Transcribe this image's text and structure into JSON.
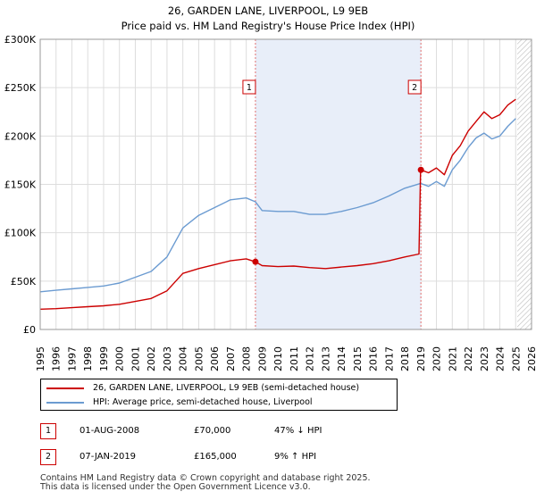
{
  "chart_data": {
    "type": "line",
    "title": "26, GARDEN LANE, LIVERPOOL, L9 9EB",
    "subtitle": "Price paid vs. HM Land Registry's House Price Index (HPI)",
    "xlabel": "",
    "ylabel": "",
    "xlim": [
      1995,
      2026
    ],
    "ylim": [
      0,
      300000
    ],
    "x_ticks": [
      "1995",
      "1996",
      "1997",
      "1998",
      "1999",
      "2000",
      "2001",
      "2002",
      "2003",
      "2004",
      "2005",
      "2006",
      "2007",
      "2008",
      "2009",
      "2010",
      "2011",
      "2012",
      "2013",
      "2014",
      "2015",
      "2016",
      "2017",
      "2018",
      "2019",
      "2020",
      "2021",
      "2022",
      "2023",
      "2024",
      "2025",
      "2026"
    ],
    "y_ticks": [
      {
        "value": 0,
        "label": "£0"
      },
      {
        "value": 50000,
        "label": "£50K"
      },
      {
        "value": 100000,
        "label": "£100K"
      },
      {
        "value": 150000,
        "label": "£150K"
      },
      {
        "value": 200000,
        "label": "£200K"
      },
      {
        "value": 250000,
        "label": "£250K"
      },
      {
        "value": 300000,
        "label": "£300K"
      }
    ],
    "shaded_range": [
      2008.58,
      2019.02
    ],
    "forecast_start": 2025.1,
    "series": [
      {
        "name": "26, GARDEN LANE, LIVERPOOL, L9 9EB (semi-detached house)",
        "color": "#cc0000",
        "points": [
          [
            1995,
            21000
          ],
          [
            1996,
            21500
          ],
          [
            1997,
            22500
          ],
          [
            1998,
            23500
          ],
          [
            1999,
            24500
          ],
          [
            2000,
            26000
          ],
          [
            2001,
            29000
          ],
          [
            2002,
            32000
          ],
          [
            2003,
            40000
          ],
          [
            2004,
            58000
          ],
          [
            2005,
            63000
          ],
          [
            2006,
            67000
          ],
          [
            2007,
            71000
          ],
          [
            2008,
            73000
          ],
          [
            2008.58,
            70000
          ],
          [
            2009,
            66000
          ],
          [
            2010,
            65000
          ],
          [
            2011,
            65500
          ],
          [
            2012,
            64000
          ],
          [
            2013,
            63000
          ],
          [
            2014,
            64500
          ],
          [
            2015,
            66000
          ],
          [
            2016,
            68000
          ],
          [
            2017,
            71000
          ],
          [
            2018,
            75000
          ],
          [
            2018.9,
            78000
          ],
          [
            2019.0,
            165000
          ],
          [
            2019.5,
            162000
          ],
          [
            2020,
            167000
          ],
          [
            2020.5,
            160000
          ],
          [
            2021,
            180000
          ],
          [
            2021.5,
            190000
          ],
          [
            2022,
            205000
          ],
          [
            2022.5,
            215000
          ],
          [
            2023,
            225000
          ],
          [
            2023.5,
            218000
          ],
          [
            2024,
            222000
          ],
          [
            2024.5,
            232000
          ],
          [
            2025,
            238000
          ]
        ]
      },
      {
        "name": "HPI: Average price, semi-detached house, Liverpool",
        "color": "#6b9bd1",
        "points": [
          [
            1995,
            39000
          ],
          [
            1996,
            40500
          ],
          [
            1997,
            42000
          ],
          [
            1998,
            43500
          ],
          [
            1999,
            45000
          ],
          [
            2000,
            48000
          ],
          [
            2001,
            54000
          ],
          [
            2002,
            60000
          ],
          [
            2003,
            75000
          ],
          [
            2004,
            105000
          ],
          [
            2005,
            118000
          ],
          [
            2006,
            126000
          ],
          [
            2007,
            134000
          ],
          [
            2008,
            136000
          ],
          [
            2008.58,
            132000
          ],
          [
            2009,
            123000
          ],
          [
            2010,
            122000
          ],
          [
            2011,
            122000
          ],
          [
            2012,
            119000
          ],
          [
            2013,
            119000
          ],
          [
            2014,
            122000
          ],
          [
            2015,
            126000
          ],
          [
            2016,
            131000
          ],
          [
            2017,
            138000
          ],
          [
            2018,
            146000
          ],
          [
            2019,
            151000
          ],
          [
            2019.5,
            148000
          ],
          [
            2020,
            153000
          ],
          [
            2020.5,
            148000
          ],
          [
            2021,
            165000
          ],
          [
            2021.5,
            175000
          ],
          [
            2022,
            188000
          ],
          [
            2022.5,
            198000
          ],
          [
            2023,
            203000
          ],
          [
            2023.5,
            197000
          ],
          [
            2024,
            200000
          ],
          [
            2024.5,
            210000
          ],
          [
            2025,
            218000
          ]
        ]
      }
    ],
    "annotations": [
      {
        "label": "1",
        "x": 2008.58,
        "value": 70000
      },
      {
        "label": "2",
        "x": 2019.02,
        "value": 165000
      }
    ]
  },
  "legend": {
    "items": [
      {
        "label": "26, GARDEN LANE, LIVERPOOL, L9 9EB (semi-detached house)",
        "color": "#cc0000"
      },
      {
        "label": "HPI: Average price, semi-detached house, Liverpool",
        "color": "#6b9bd1"
      }
    ]
  },
  "transactions": [
    {
      "num": "1",
      "date": "01-AUG-2008",
      "price": "£70,000",
      "hpi": "47% ↓ HPI"
    },
    {
      "num": "2",
      "date": "07-JAN-2019",
      "price": "£165,000",
      "hpi": "9% ↑ HPI"
    }
  ],
  "footer": {
    "line1": "Contains HM Land Registry data © Crown copyright and database right 2025.",
    "line2": "This data is licensed under the Open Government Licence v3.0."
  }
}
